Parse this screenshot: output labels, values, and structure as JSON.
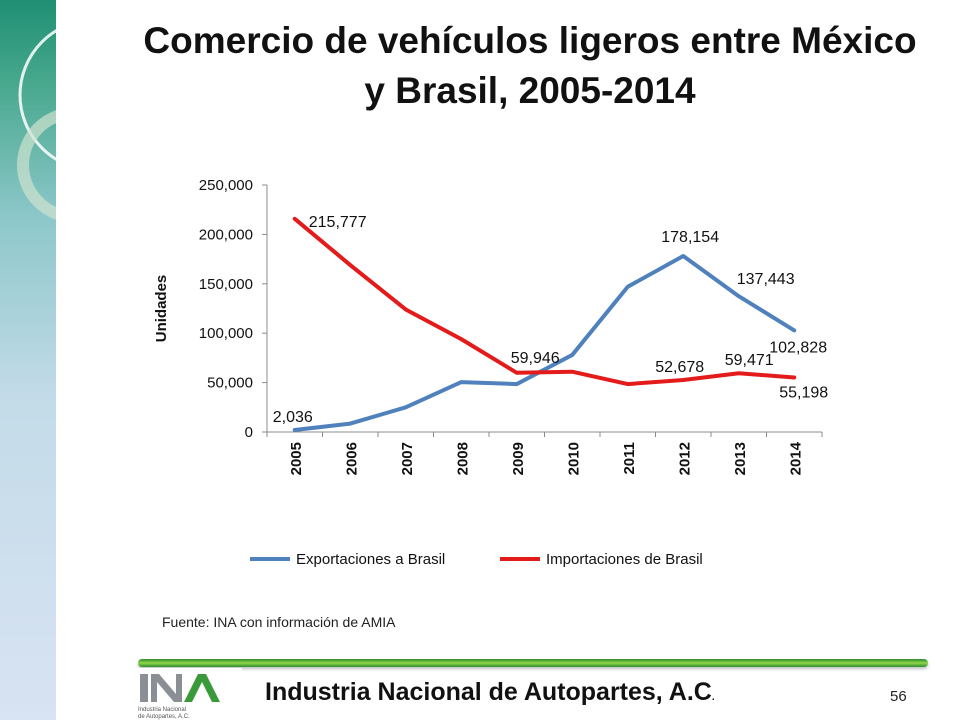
{
  "slide": {
    "title_line1": "Comercio de vehículos ligeros entre México",
    "title_line2": "y Brasil, 2005-2014",
    "source": "Fuente: INA con información de AMIA",
    "footer_title": "Industria Nacional de  Autopartes, A.C",
    "page_number": "56",
    "logo_text_line1": "Industria Nacional",
    "logo_text_line2": "de Autopartes, A.C.",
    "colors": {
      "band": "#2e9a7c",
      "rule": "#5cbf3a"
    }
  },
  "chart_data": {
    "type": "line",
    "title": "",
    "xlabel": "",
    "ylabel": "Unidades",
    "categories": [
      "2005",
      "2006",
      "2007",
      "2008",
      "2009",
      "2010",
      "2011",
      "2012",
      "2013",
      "2014"
    ],
    "ylim": [
      0,
      250000
    ],
    "yticks": [
      0,
      50000,
      100000,
      150000,
      200000,
      250000
    ],
    "ytick_labels": [
      "0",
      "50,000",
      "100,000",
      "150,000",
      "200,000",
      "250,000"
    ],
    "grid": false,
    "legend_position": "bottom",
    "series": [
      {
        "name": "Exportaciones a Brasil",
        "color": "#4f81bd",
        "values": [
          2036,
          8500,
          25000,
          50500,
          48500,
          78000,
          147000,
          178154,
          137443,
          102828
        ]
      },
      {
        "name": "Importaciones de Brasil",
        "color": "#e31b1b",
        "values": [
          215777,
          169000,
          124000,
          94000,
          59946,
          61000,
          48500,
          52678,
          59471,
          55198
        ]
      }
    ],
    "data_labels": [
      {
        "series": 0,
        "index": 0,
        "text": "2,036"
      },
      {
        "series": 0,
        "index": 7,
        "text": "178,154"
      },
      {
        "series": 0,
        "index": 8,
        "text": "137,443"
      },
      {
        "series": 0,
        "index": 9,
        "text": "102,828"
      },
      {
        "series": 1,
        "index": 0,
        "text": "215,777"
      },
      {
        "series": 1,
        "index": 4,
        "text": "59,946"
      },
      {
        "series": 1,
        "index": 7,
        "text": "52,678"
      },
      {
        "series": 1,
        "index": 8,
        "text": "59,471"
      },
      {
        "series": 1,
        "index": 9,
        "text": "55,198"
      }
    ]
  }
}
